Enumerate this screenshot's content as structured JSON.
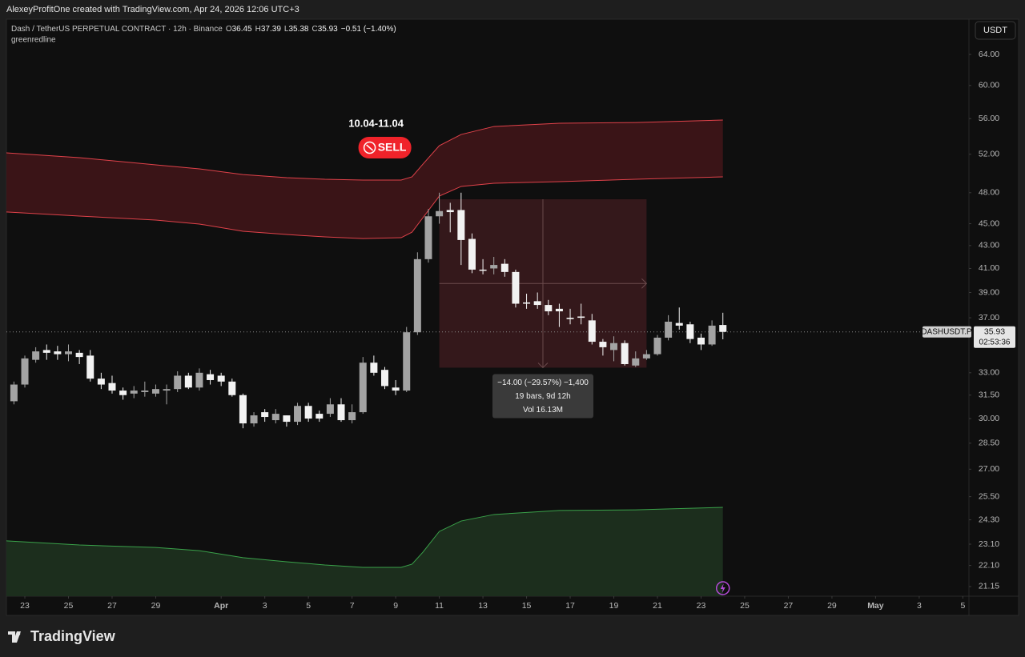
{
  "header": {
    "credit": "AlexeyProfitOne created with TradingView.com, Apr 24, 2026 12:06 UTC+3",
    "symbol": "Dash / TetherUS PERPETUAL CONTRACT · 12h · Binance",
    "ohlc": [
      {
        "label": "O",
        "value": 36.45
      },
      {
        "label": "H",
        "value": 37.39
      },
      {
        "label": "L",
        "value": 35.38
      },
      {
        "label": "C",
        "value": 35.93
      }
    ],
    "change": "−0.51 (−1.40%)",
    "indicator": "greenredline",
    "currency": "USDT"
  },
  "chart_data": {
    "type": "candlestick",
    "log_scale": true,
    "grid": false,
    "up_color": "#a3a3a3",
    "down_color": "#f2f2f2",
    "xlim": [
      -0.69,
      87.56
    ],
    "ylim": [
      20.73,
      68.87
    ],
    "xticks": [
      {
        "value": 1,
        "label": "23"
      },
      {
        "value": 5,
        "label": "25"
      },
      {
        "value": 9,
        "label": "27"
      },
      {
        "value": 13,
        "label": "29"
      },
      {
        "value": 19,
        "label": "Apr"
      },
      {
        "value": 23,
        "label": "3"
      },
      {
        "value": 27,
        "label": "5"
      },
      {
        "value": 31,
        "label": "7"
      },
      {
        "value": 35,
        "label": "9"
      },
      {
        "value": 39,
        "label": "11"
      },
      {
        "value": 43,
        "label": "13"
      },
      {
        "value": 47,
        "label": "15"
      },
      {
        "value": 51,
        "label": "17"
      },
      {
        "value": 55,
        "label": "19"
      },
      {
        "value": 59,
        "label": "21"
      },
      {
        "value": 63,
        "label": "23"
      },
      {
        "value": 67,
        "label": "25"
      },
      {
        "value": 71,
        "label": "27"
      },
      {
        "value": 75,
        "label": "29"
      },
      {
        "value": 79,
        "label": "May"
      },
      {
        "value": 83,
        "label": "3"
      },
      {
        "value": 87,
        "label": "5"
      }
    ],
    "yticks": [
      {
        "value": 64,
        "label": "64.00"
      },
      {
        "value": 60,
        "label": "60.00"
      },
      {
        "value": 56,
        "label": "56.00"
      },
      {
        "value": 52,
        "label": "52.00"
      },
      {
        "value": 48,
        "label": "48.00"
      },
      {
        "value": 45,
        "label": "45.00"
      },
      {
        "value": 43,
        "label": "43.00"
      },
      {
        "value": 41,
        "label": "41.00"
      },
      {
        "value": 39,
        "label": "39.00"
      },
      {
        "value": 37,
        "label": "37.00"
      },
      {
        "value": 33,
        "label": "33.00"
      },
      {
        "value": 31.5,
        "label": "31.50"
      },
      {
        "value": 30,
        "label": "30.00"
      },
      {
        "value": 28.5,
        "label": "28.50"
      },
      {
        "value": 27,
        "label": "27.00"
      },
      {
        "value": 25.5,
        "label": "25.50"
      },
      {
        "value": 24.3,
        "label": "24.30"
      },
      {
        "value": 23.1,
        "label": "23.10"
      },
      {
        "value": 22.1,
        "label": "22.10"
      },
      {
        "value": 21.15,
        "label": "21.15"
      }
    ],
    "open": [
      31.1,
      32.2,
      33.9,
      34.6,
      34.5,
      34.3,
      34.4,
      34.2,
      32.6,
      32.3,
      31.8,
      31.6,
      31.7,
      31.6,
      31.8,
      31.9,
      32.8,
      32.0,
      32.9,
      32.8,
      32.4,
      31.5,
      29.7,
      30.4,
      29.9,
      30.2,
      29.8,
      30.8,
      30.3,
      30.3,
      30.9,
      29.9,
      30.4,
      33.7,
      33.2,
      32.0,
      31.8,
      35.9,
      41.8,
      45.7,
      46.3,
      46.3,
      43.6,
      40.9,
      41.0,
      41.4,
      40.7,
      38.2,
      38.3,
      38.0,
      37.7,
      37.0,
      37.1,
      36.8,
      35.2,
      34.6,
      35.1,
      33.5,
      34.0,
      34.3,
      35.5,
      36.6,
      36.5,
      35.5,
      35.0,
      36.45
    ],
    "high": [
      32.4,
      34.2,
      34.8,
      35.0,
      34.9,
      35.0,
      34.6,
      34.6,
      33.0,
      32.8,
      32.0,
      32.1,
      32.4,
      32.2,
      32.2,
      33.1,
      33.0,
      33.3,
      33.2,
      33.0,
      32.6,
      31.6,
      30.4,
      30.6,
      30.6,
      30.2,
      31.0,
      31.0,
      30.5,
      31.3,
      31.3,
      30.9,
      34.1,
      34.2,
      33.4,
      32.5,
      36.3,
      42.4,
      46.4,
      48.0,
      47.0,
      48.0,
      44.1,
      41.8,
      42.0,
      41.8,
      40.9,
      38.9,
      39.0,
      38.4,
      38.1,
      37.7,
      38.1,
      37.3,
      35.4,
      35.6,
      35.3,
      34.5,
      34.6,
      35.7,
      37.2,
      37.8,
      36.7,
      35.8,
      36.8,
      37.39
    ],
    "low": [
      30.9,
      32.0,
      33.7,
      33.9,
      33.9,
      33.8,
      33.6,
      32.4,
      31.9,
      31.6,
      31.2,
      31.3,
      31.4,
      31.4,
      30.9,
      31.7,
      31.9,
      31.8,
      32.2,
      32.1,
      31.4,
      29.4,
      29.5,
      29.8,
      29.7,
      29.5,
      29.6,
      29.8,
      29.8,
      30.1,
      29.8,
      29.7,
      30.3,
      32.8,
      31.9,
      31.5,
      31.7,
      35.7,
      41.5,
      45.0,
      44.2,
      41.3,
      40.6,
      40.5,
      40.5,
      40.3,
      37.8,
      37.7,
      37.7,
      37.2,
      36.3,
      36.5,
      36.5,
      35.0,
      34.2,
      33.8,
      33.5,
      33.4,
      33.9,
      34.2,
      35.3,
      36.1,
      35.1,
      34.6,
      34.9,
      35.38
    ],
    "close": [
      32.2,
      34.0,
      34.5,
      34.4,
      34.3,
      34.5,
      34.1,
      32.6,
      32.2,
      31.8,
      31.5,
      31.8,
      31.8,
      31.9,
      31.9,
      32.8,
      32.0,
      33.0,
      32.5,
      32.4,
      31.5,
      29.7,
      30.2,
      30.1,
      30.3,
      29.8,
      30.8,
      30.0,
      30.0,
      30.9,
      29.9,
      30.4,
      33.7,
      33.0,
      32.1,
      31.8,
      35.9,
      41.8,
      45.7,
      46.2,
      46.1,
      43.5,
      40.9,
      40.8,
      41.3,
      40.7,
      38.1,
      38.1,
      38.0,
      37.5,
      37.5,
      36.9,
      37.0,
      35.2,
      34.8,
      35.1,
      33.6,
      34.0,
      34.3,
      35.5,
      36.7,
      36.4,
      35.4,
      35.0,
      36.4,
      35.93
    ],
    "bands": {
      "x": [
        -0.7,
        6,
        13,
        17,
        21,
        25,
        28.5,
        32,
        35.5,
        36.5,
        37.5,
        39,
        41,
        44,
        50,
        57,
        65
      ],
      "red_upper": [
        52.15,
        51.63,
        50.86,
        50.44,
        49.85,
        49.53,
        49.36,
        49.28,
        49.28,
        49.61,
        50.94,
        52.93,
        54.18,
        55.09,
        55.46,
        55.55,
        55.83
      ],
      "red_lower": [
        46.11,
        45.72,
        45.34,
        44.97,
        44.3,
        44.0,
        43.78,
        43.63,
        43.71,
        44.22,
        45.57,
        47.66,
        48.63,
        48.95,
        49.12,
        49.36,
        49.61
      ],
      "green": [
        23.26,
        23.06,
        22.94,
        22.79,
        22.46,
        22.27,
        22.12,
        22.01,
        22.01,
        22.16,
        22.72,
        23.72,
        24.24,
        24.57,
        24.78,
        24.81,
        24.94
      ],
      "red_color": "#e0424a",
      "red_fill": "#3a1417",
      "green_color": "#3aa24a",
      "green_fill": "#1c2e1d"
    },
    "annotations": {
      "date_range": "10.04-11.04",
      "signal": "SELL",
      "signal_index": 33.2
    },
    "measure": {
      "from_index": 39,
      "to_index": 58,
      "from_price": 47.35,
      "to_price": 33.35,
      "lines": [
        "−14.00 (−29.57%) −1,400",
        "19 bars, 9d 12h",
        "Vol 16.13M"
      ]
    },
    "price_tag": {
      "symbol": "DASHUSDT.P",
      "value": 35.93,
      "countdown": "02:53:36"
    }
  },
  "footer": {
    "brand": "TradingView"
  }
}
